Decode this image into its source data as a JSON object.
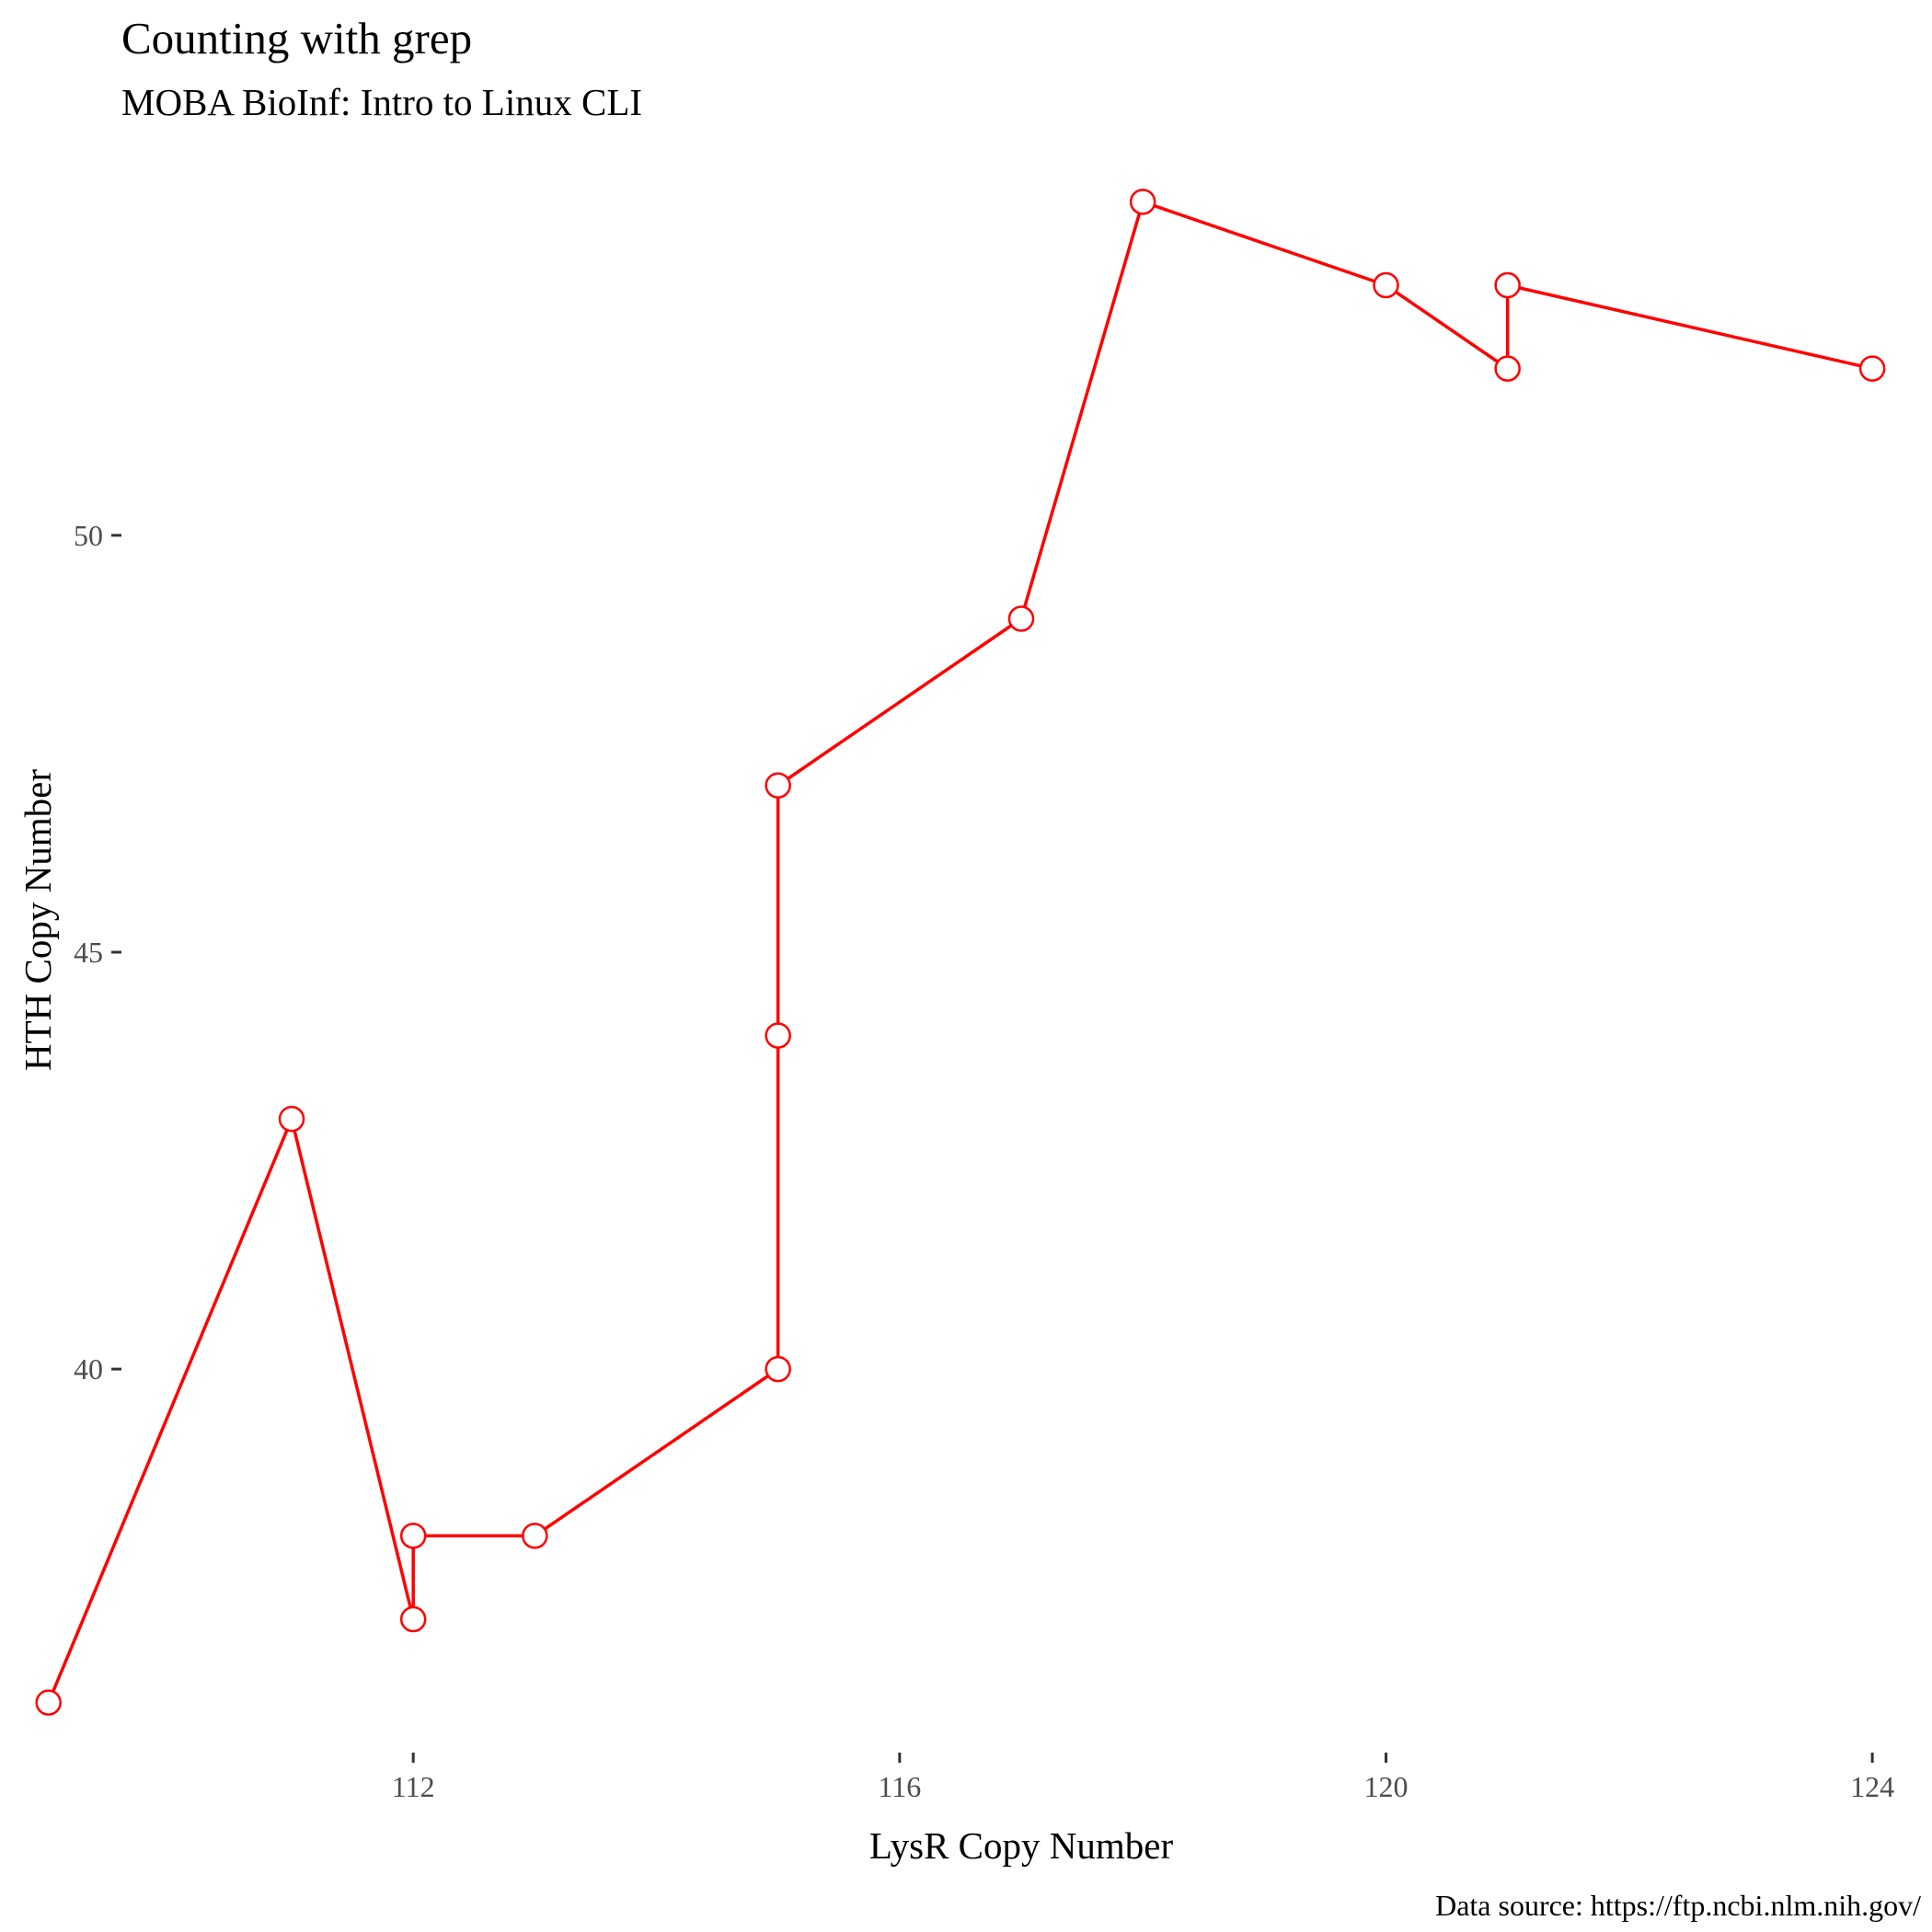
{
  "chart_data": {
    "type": "line",
    "title": "Counting with grep",
    "subtitle": "MOBA BioInf: Intro to Linux CLI",
    "xlabel": "LysR Copy Number",
    "ylabel": "HTH Copy Number",
    "caption": "Data source: https://ftp.ncbi.nlm.nih.gov/",
    "x_ticks": [
      112,
      116,
      120,
      124
    ],
    "y_ticks": [
      40,
      45,
      50
    ],
    "xlim": [
      109.6,
      124.4
    ],
    "ylim": [
      35.4,
      54.6
    ],
    "grid": false,
    "line_color": "#ff0000",
    "marker_fill": "#ffffff",
    "series": [
      {
        "x": [
          109,
          111,
          112,
          112,
          113,
          115,
          115,
          115,
          117,
          118,
          120,
          121,
          121,
          124
        ],
        "y": [
          36,
          43,
          37,
          38,
          38,
          40,
          44,
          47,
          49,
          54,
          53,
          52,
          53,
          52
        ]
      }
    ]
  }
}
